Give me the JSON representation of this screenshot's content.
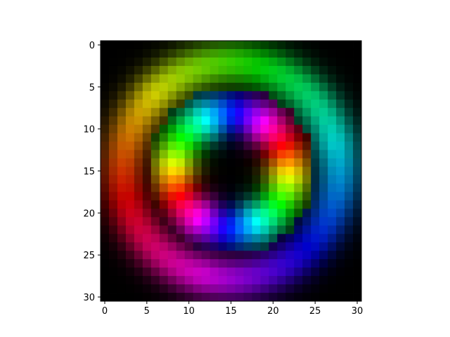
{
  "chart_data": {
    "type": "heatmap",
    "title": "",
    "xlabel": "",
    "ylabel": "",
    "grid": false,
    "legend": "none",
    "size": [
      31,
      31
    ],
    "xlim": [
      -0.5,
      30.5
    ],
    "ylim": [
      30.5,
      -0.5
    ],
    "x_ticks": [
      "0",
      "5",
      "10",
      "15",
      "20",
      "25",
      "30"
    ],
    "y_ticks": [
      "0",
      "5",
      "10",
      "15",
      "20",
      "25",
      "30"
    ],
    "colormap": "hsv phase / brightness amplitude",
    "rings": [
      {
        "name": "inner",
        "radius": 6.8,
        "width": 2.6,
        "angular_cycles": 2,
        "peak_brightness": 1.0
      },
      {
        "name": "outer",
        "radius": 12.8,
        "width": 2.6,
        "angular_cycles": 1,
        "peak_brightness": 0.8
      }
    ],
    "center": [
      15,
      15
    ],
    "colors": {
      "background": "#000000",
      "axes_frame": "#000000"
    }
  }
}
